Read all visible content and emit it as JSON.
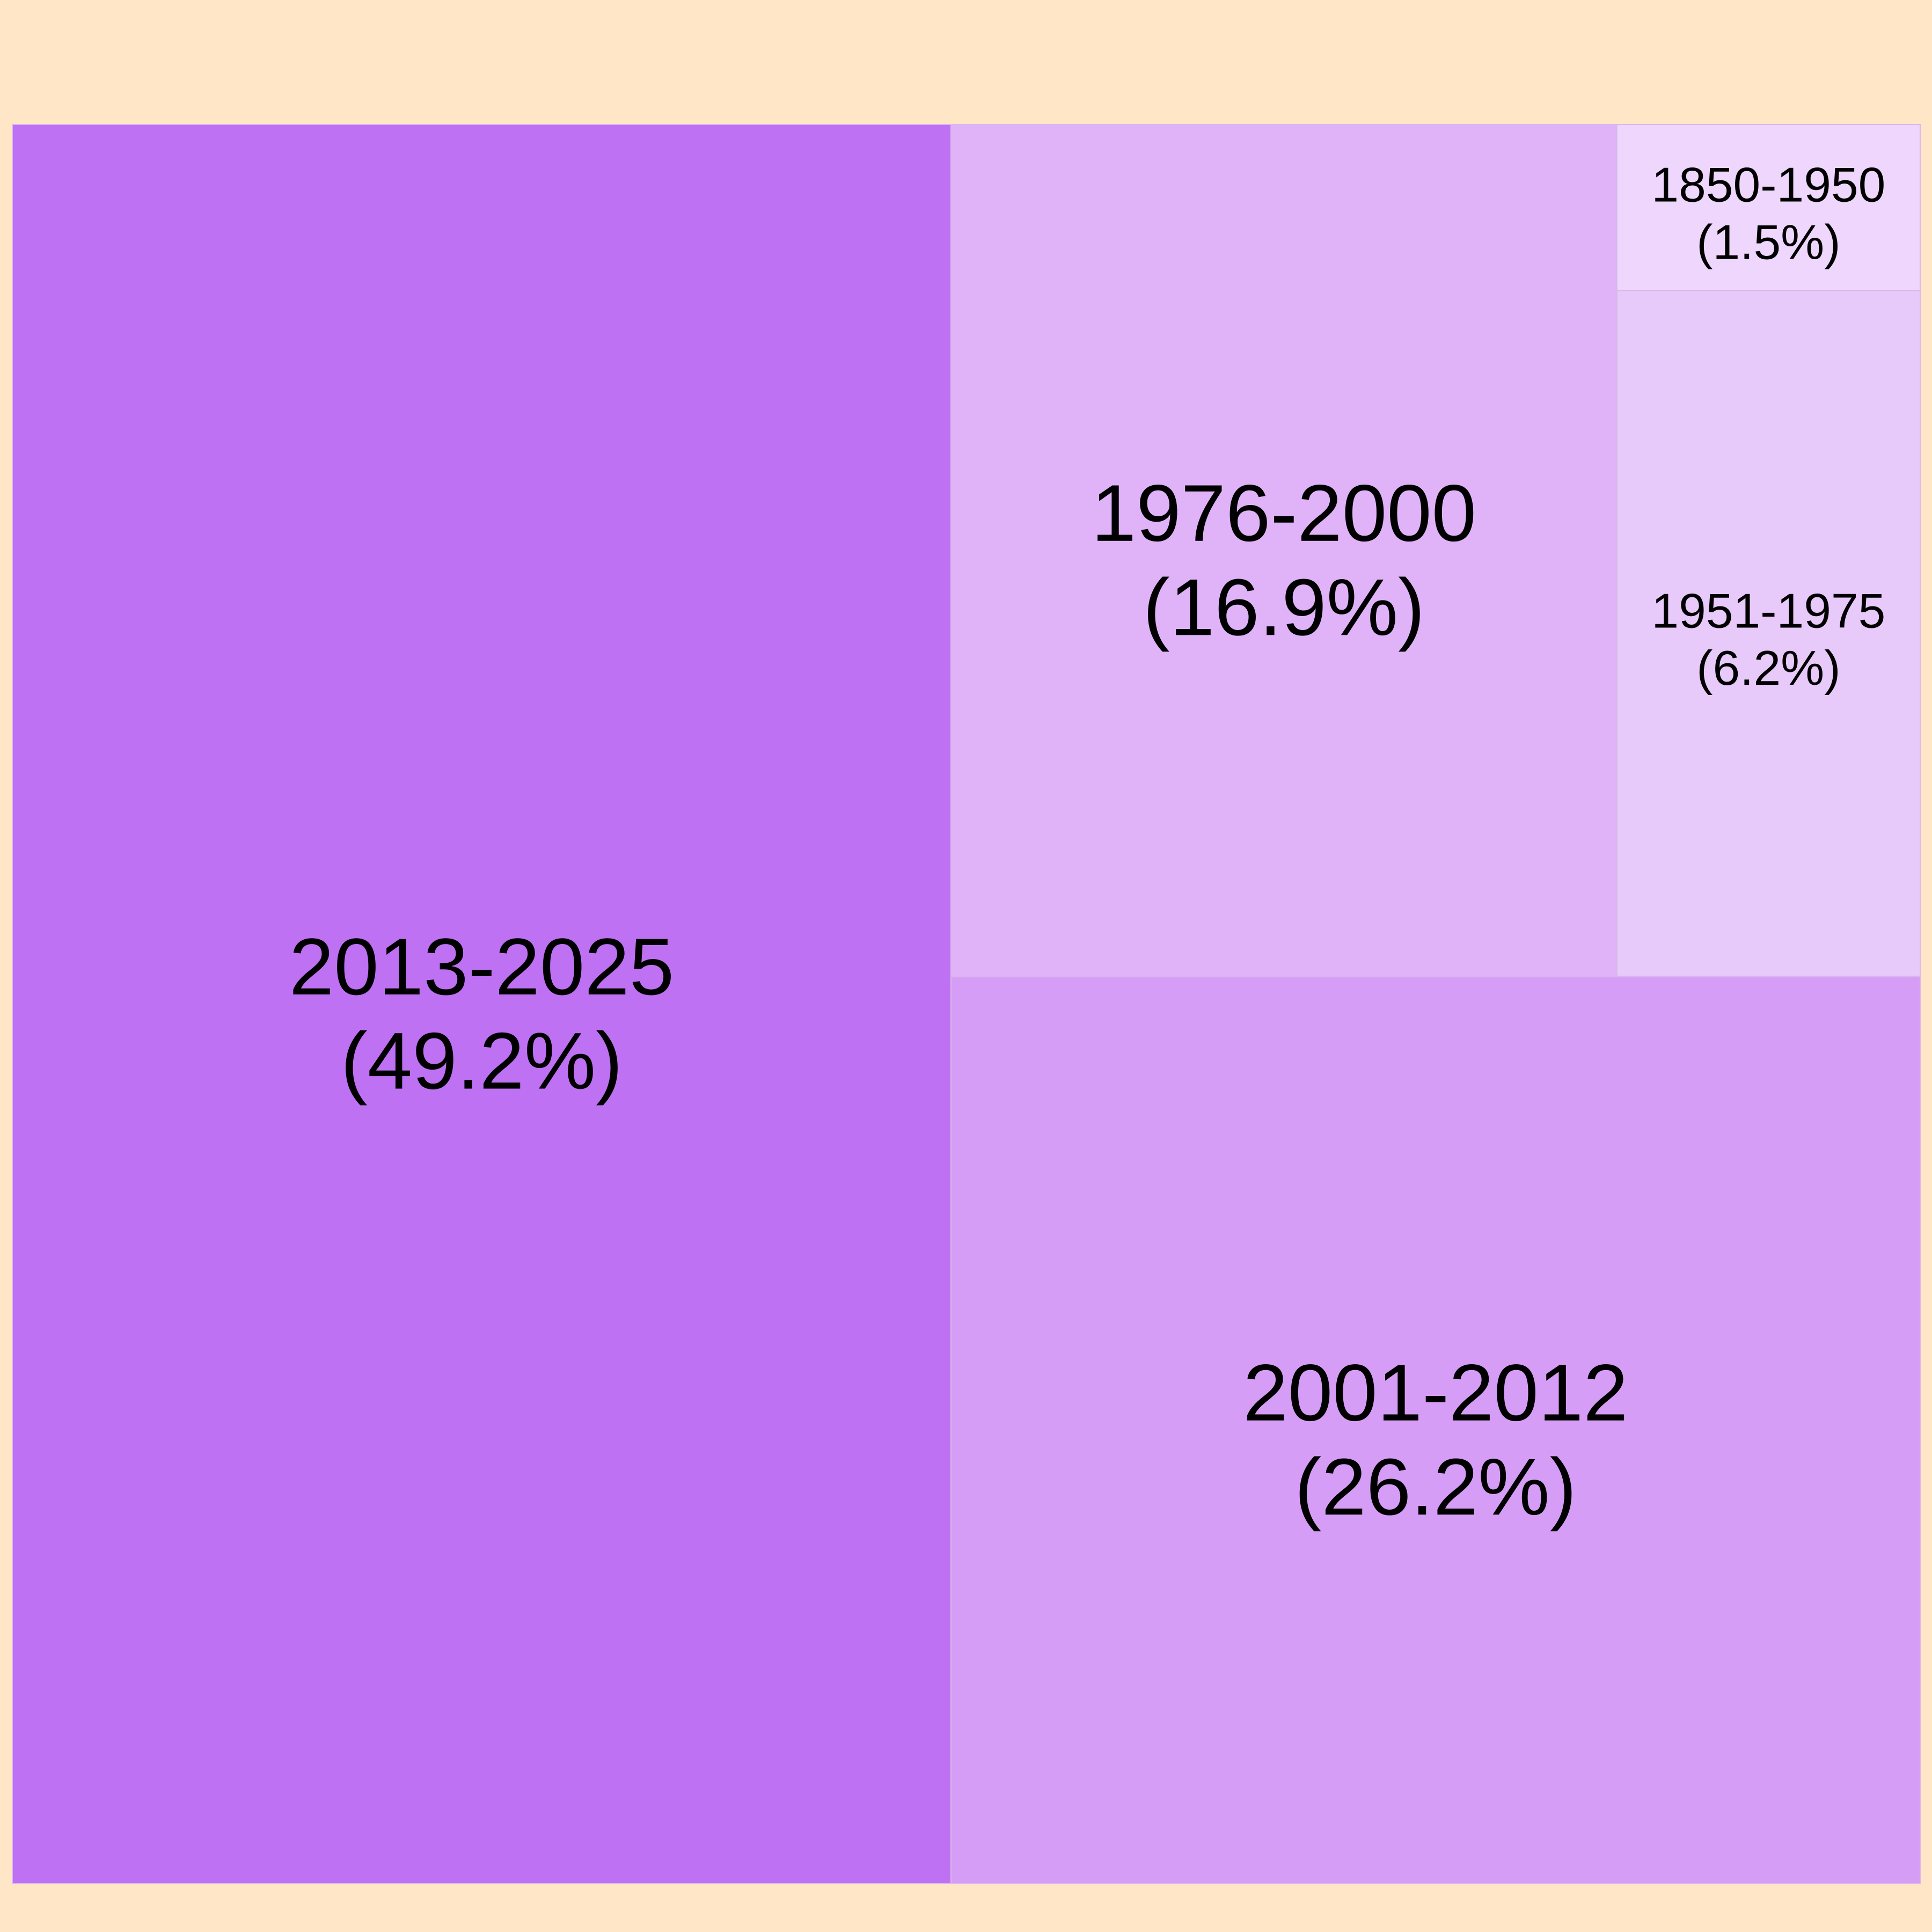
{
  "chart_data": {
    "type": "treemap",
    "title": "",
    "items": [
      {
        "label": "2013-2025",
        "value": 49.2,
        "value_text": "(49.2%)",
        "color": "#bf71f3"
      },
      {
        "label": "2001-2012",
        "value": 26.2,
        "value_text": "(26.2%)",
        "color": "#d69df6"
      },
      {
        "label": "1976-2000",
        "value": 16.9,
        "value_text": "(16.9%)",
        "color": "#e0b3f9"
      },
      {
        "label": "1951-1975",
        "value": 6.2,
        "value_text": "(6.2%)",
        "color": "#e7c9fa"
      },
      {
        "label": "1850-1950",
        "value": 1.5,
        "value_text": "(1.5%)",
        "color": "#eed6fc"
      }
    ],
    "background_color": "#ffe6c7",
    "tile_border_color": "#d8b8ec"
  }
}
